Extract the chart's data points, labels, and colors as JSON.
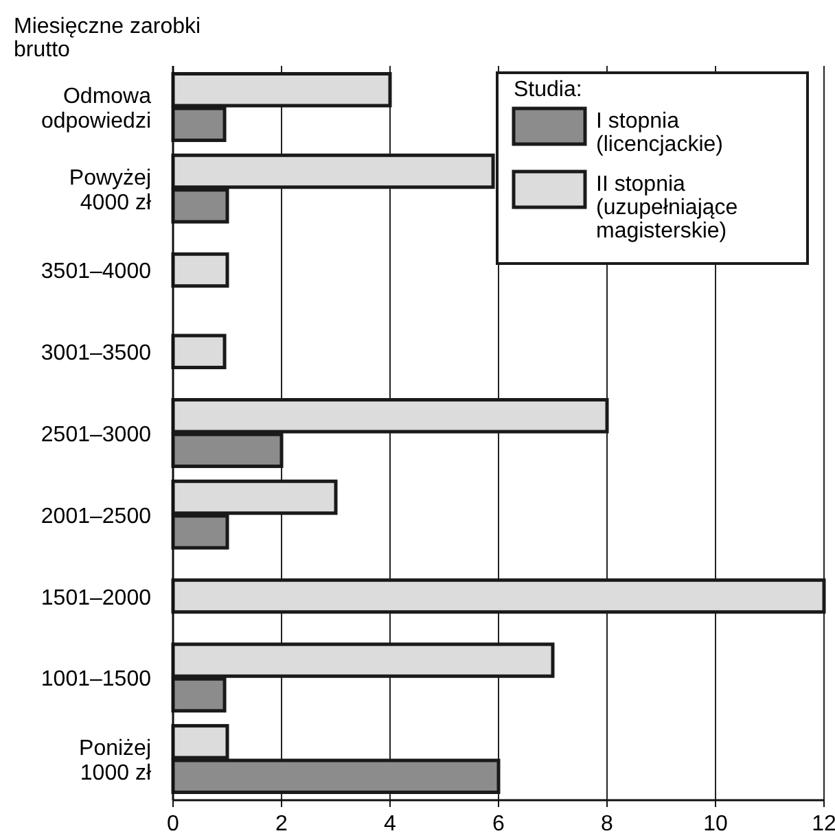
{
  "chart_data": {
    "type": "bar",
    "orientation": "horizontal",
    "ylabel": "Miesięczne zarobki brutto",
    "legend_title": "Studia:",
    "legend": "top right",
    "grid": "x",
    "categories": [
      "Odmowa odpowiedzi",
      "Powyżej 4000 zł",
      "3501–4000",
      "3001–3500",
      "2501–3000",
      "2001–2500",
      "1501–2000",
      "1001–1500",
      "Poniżej 1000 zł"
    ],
    "series": [
      {
        "name": "I stopnia (licencjackie)",
        "color": "#8c8c8c",
        "values": [
          0.95,
          1,
          null,
          null,
          2,
          1,
          null,
          0.95,
          6
        ]
      },
      {
        "name": "II stopnia (uzupełniające magisterskie)",
        "color": "#dcdcdc",
        "values": [
          4,
          5.9,
          1,
          0.95,
          8,
          3,
          12,
          7,
          1
        ]
      }
    ],
    "xlim": [
      0,
      12
    ],
    "xticks": [
      0,
      2,
      4,
      6,
      8,
      10,
      12
    ]
  }
}
